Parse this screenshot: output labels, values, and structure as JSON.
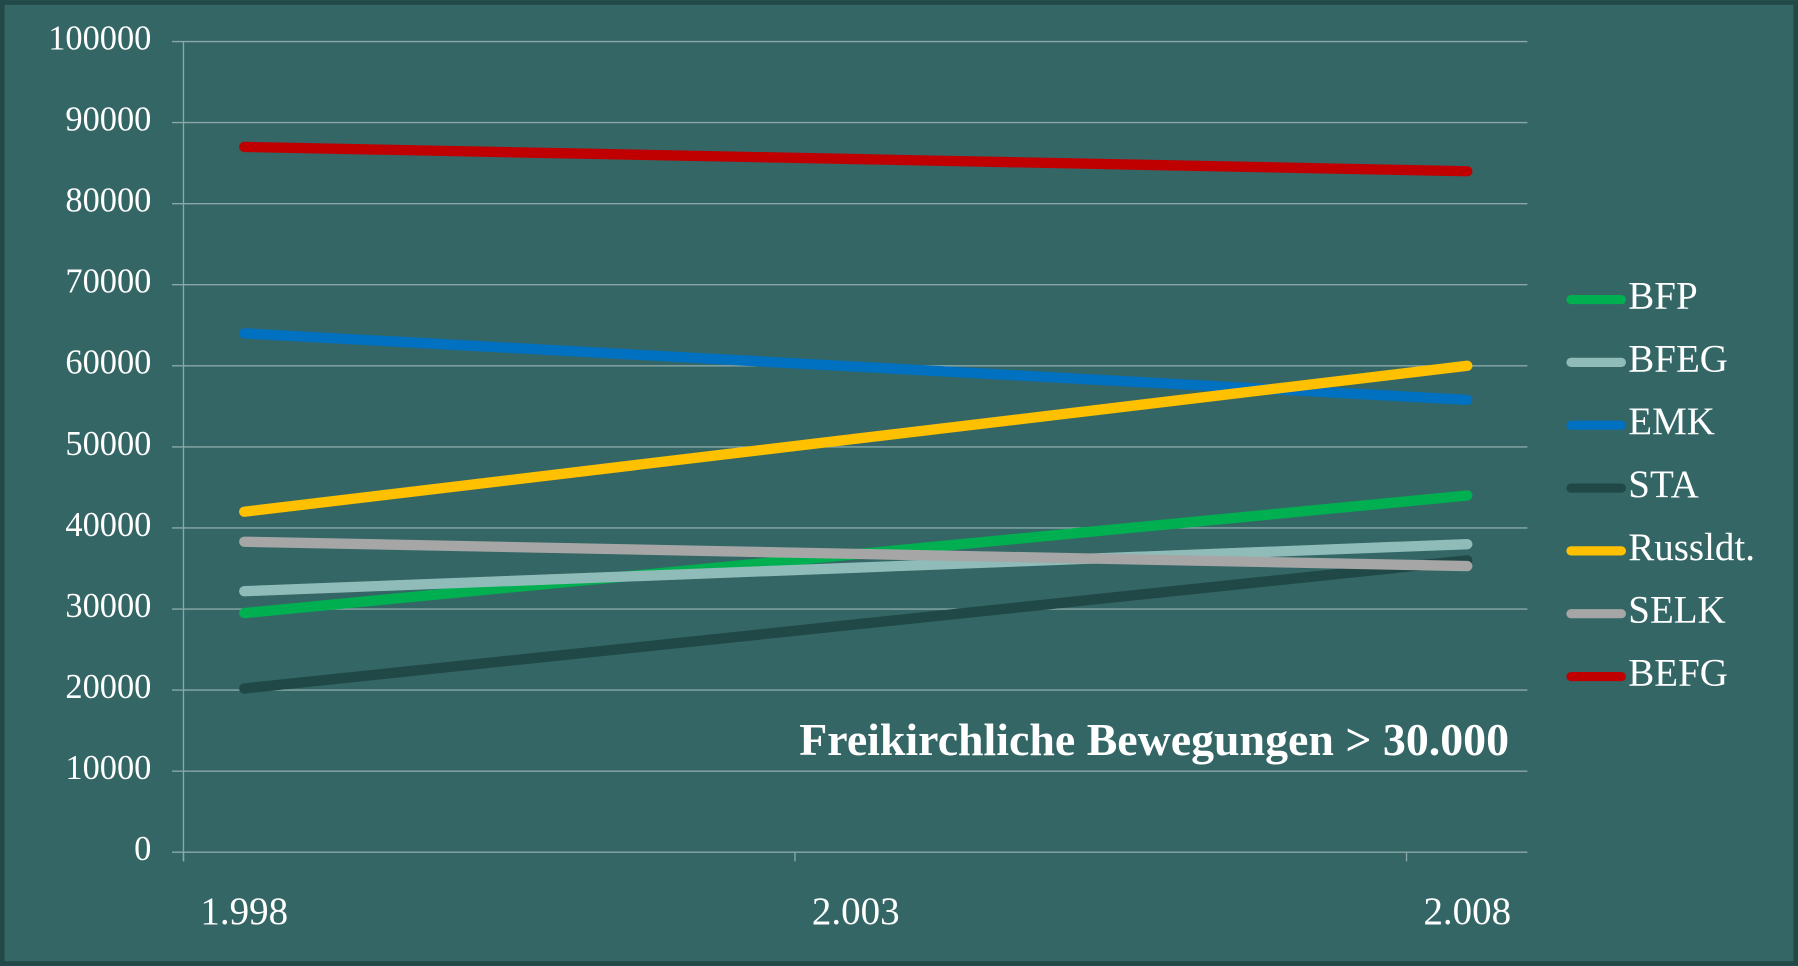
{
  "chart_data": {
    "type": "line",
    "categories": [
      "1.998",
      "2.003",
      "2.008"
    ],
    "series": [
      {
        "name": "BFP",
        "color": "#00b050",
        "values": [
          29500,
          36750,
          44000
        ]
      },
      {
        "name": "BFEG",
        "color": "#8fbcb8",
        "values": [
          32200,
          35100,
          38000
        ]
      },
      {
        "name": "EMK",
        "color": "#0070c0",
        "values": [
          64000,
          59900,
          55800
        ]
      },
      {
        "name": "STA",
        "color": "#1f4846",
        "values": [
          20200,
          28100,
          36000
        ]
      },
      {
        "name": "Russldt.",
        "color": "#ffc000",
        "values": [
          42000,
          51000,
          60000
        ]
      },
      {
        "name": "SELK",
        "color": "#a6a6a6",
        "values": [
          38300,
          36800,
          35300
        ]
      },
      {
        "name": "BEFG",
        "color": "#c00000",
        "values": [
          87000,
          85500,
          84000
        ]
      }
    ],
    "annotation": "Freikirchliche Bewegungen > 30.000",
    "ylim": [
      0,
      100000
    ],
    "yticks": [
      0,
      10000,
      20000,
      30000,
      40000,
      50000,
      60000,
      70000,
      80000,
      90000,
      100000
    ],
    "grid": true
  }
}
